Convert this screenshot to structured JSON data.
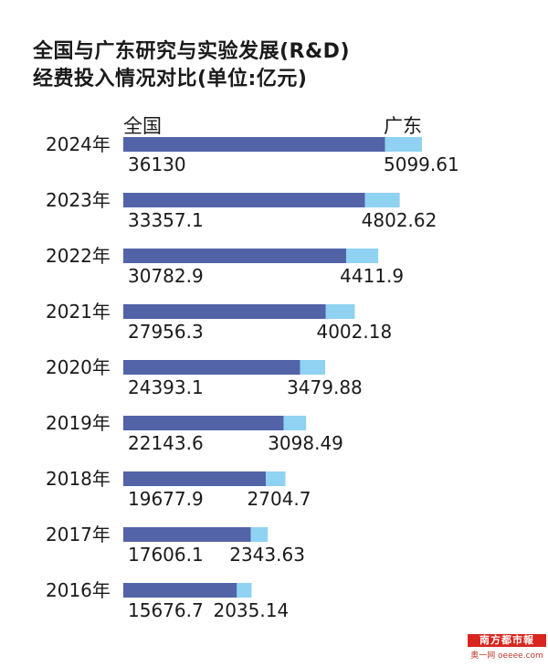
{
  "title": {
    "line1": "全国与广东研究与实验发展(R&D)",
    "line2": "经费投入情况对比(单位:亿元)"
  },
  "legend": {
    "national": "全国",
    "guangdong": "广东"
  },
  "colors": {
    "national": "#5263a8",
    "guangdong": "#8fd2f2"
  },
  "watermark": {
    "brand": "南方都市報",
    "sub": "奥一网 oeeee.com"
  },
  "chart_data": {
    "type": "bar",
    "orientation": "horizontal",
    "stacked": true,
    "categories": [
      "2024年",
      "2023年",
      "2022年",
      "2021年",
      "2020年",
      "2019年",
      "2018年",
      "2017年",
      "2016年"
    ],
    "category_years": [
      2024,
      2023,
      2022,
      2021,
      2020,
      2019,
      2018,
      2017,
      2016
    ],
    "series": [
      {
        "name": "全国",
        "values": [
          36130,
          33357.1,
          30782.9,
          27956.3,
          24393.1,
          22143.6,
          19677.9,
          17606.1,
          15676.7
        ],
        "labels": [
          "36130",
          "33357.1",
          "30782.9",
          "27956.3",
          "24393.1",
          "22143.6",
          "19677.9",
          "17606.1",
          "15676.7"
        ]
      },
      {
        "name": "广东",
        "values": [
          5099.61,
          4802.62,
          4411.9,
          4002.18,
          3479.88,
          3098.49,
          2704.7,
          2343.63,
          2035.14
        ],
        "labels": [
          "5099.61",
          "4802.62",
          "4411.9",
          "4002.18",
          "3479.88",
          "3098.49",
          "2704.7",
          "2343.63",
          "2035.14"
        ]
      }
    ],
    "grid": false
  }
}
